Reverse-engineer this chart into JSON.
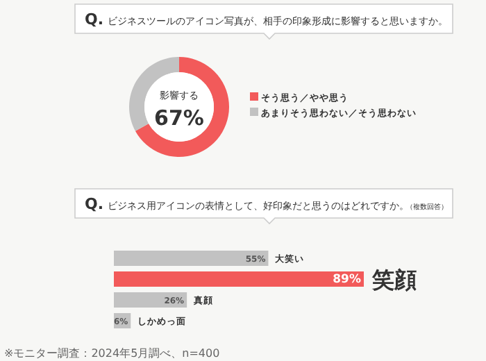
{
  "chart_data": [
    {
      "type": "donut",
      "title": "Q. ビジネスツールのアイコン写真が、相手の印象形成に影響すると思いますか。",
      "categories": [
        "そう思う／やや思う",
        "あまりそう思わない／そう思わない"
      ],
      "values": [
        67,
        33
      ],
      "colors": [
        "#f25a5a",
        "#c2c2c2"
      ],
      "annotations": [
        "影響する",
        "67%"
      ],
      "legend": "right"
    },
    {
      "type": "bar",
      "orientation": "horizontal",
      "title": "Q. ビジネス用アイコンの表情として、好印象だと思うのはどれですか。",
      "subtitle": "（複数回答）",
      "categories": [
        "大笑い",
        "笑顔",
        "真顔",
        "しかめっ面"
      ],
      "values": [
        55,
        89,
        26,
        6
      ],
      "value_labels": [
        "55%",
        "89%",
        "26%",
        "6%"
      ],
      "colors": [
        "#c2c2c2",
        "#f25a5a",
        "#c2c2c2",
        "#c2c2c2"
      ],
      "annotations": [
        "※モニター調査：2024年5月調べ、n=400"
      ]
    }
  ]
}
